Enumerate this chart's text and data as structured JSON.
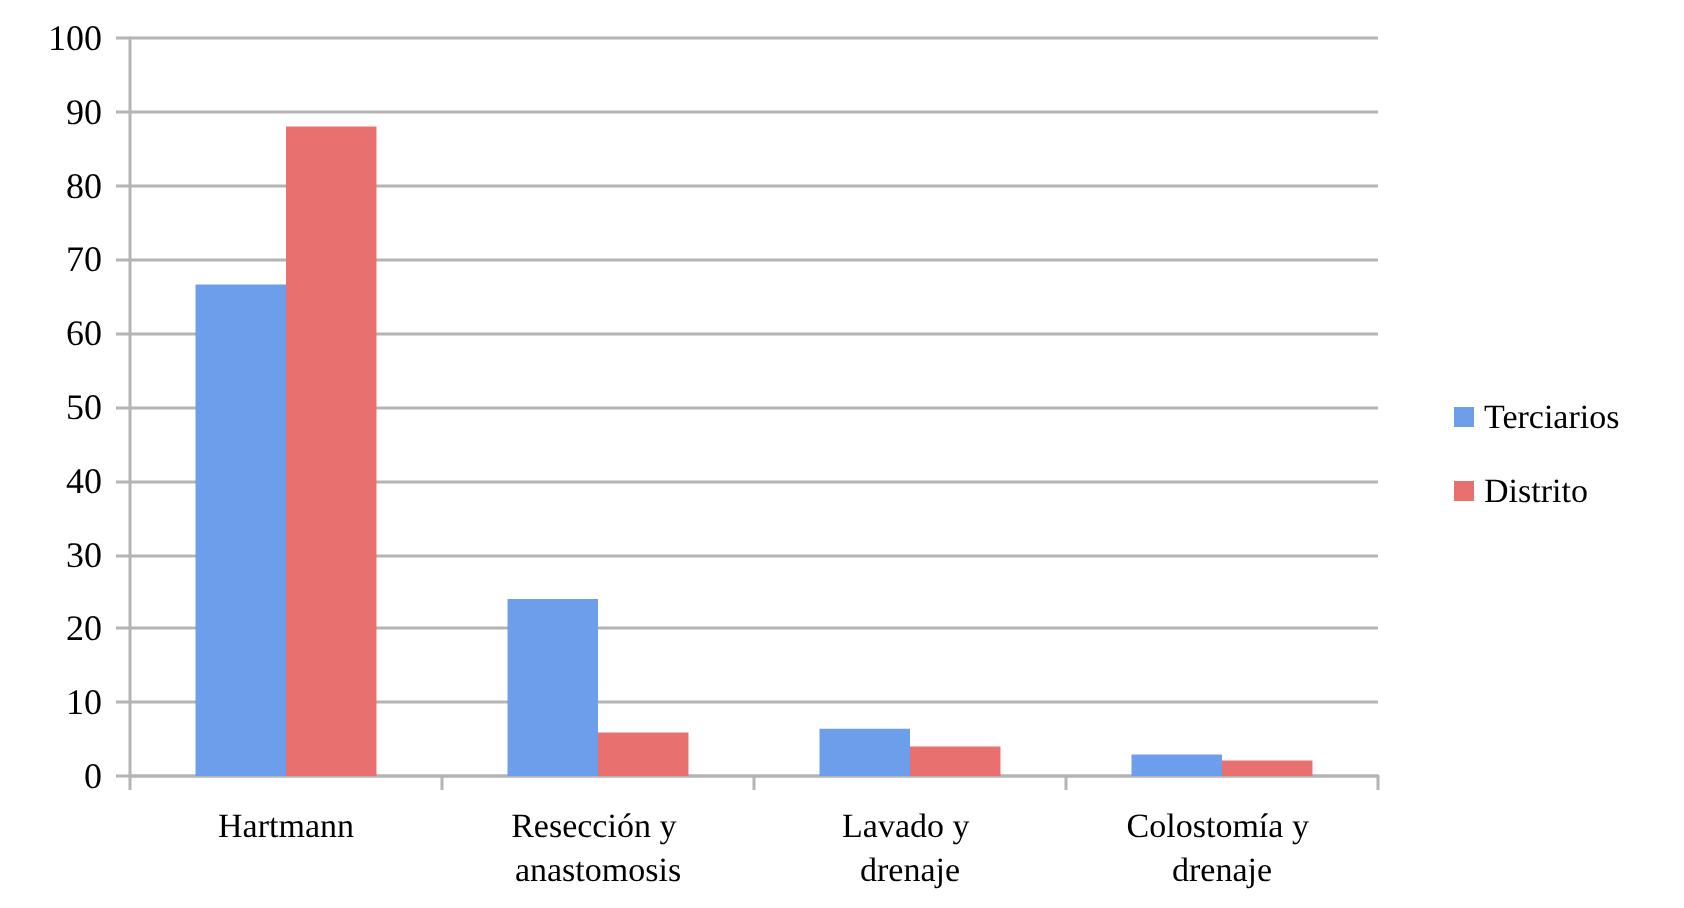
{
  "chart_data": {
    "type": "bar",
    "categories": [
      "Hartmann",
      "Resección y anastomosis",
      "Lavado y drenaje",
      "Colostomía y drenaje"
    ],
    "series": [
      {
        "name": "Terciarios",
        "color": "#6d9eeb",
        "values": [
          66.6,
          24,
          6.4,
          2.9
        ]
      },
      {
        "name": "Distrito",
        "color": "#e8716f",
        "values": [
          88,
          5.9,
          4,
          2.1
        ]
      }
    ],
    "ylim": [
      0,
      100
    ],
    "yticks": [
      0,
      10,
      20,
      30,
      40,
      50,
      60,
      70,
      80,
      90,
      100
    ],
    "grid": "y",
    "legend": "right"
  }
}
